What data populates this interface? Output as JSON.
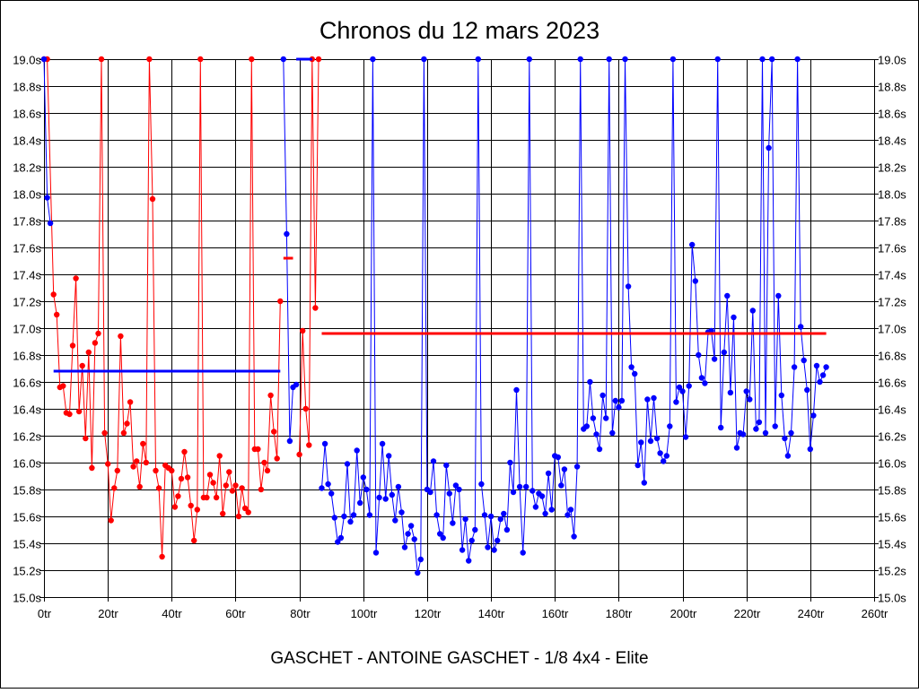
{
  "chart_data": {
    "type": "line",
    "title": "Chronos du 12 mars 2023",
    "subtitle": "GASCHET - ANTOINE GASCHET - 1/8 4x4 - Elite",
    "xlim": [
      0,
      260
    ],
    "ylim": [
      15.0,
      19.0
    ],
    "x_ticks": [
      {
        "v": 0,
        "label": "0tr"
      },
      {
        "v": 20,
        "label": "20tr"
      },
      {
        "v": 40,
        "label": "40tr"
      },
      {
        "v": 60,
        "label": "60tr"
      },
      {
        "v": 80,
        "label": "80tr"
      },
      {
        "v": 100,
        "label": "100tr"
      },
      {
        "v": 120,
        "label": "120tr"
      },
      {
        "v": 140,
        "label": "140tr"
      },
      {
        "v": 160,
        "label": "160tr"
      },
      {
        "v": 180,
        "label": "180tr"
      },
      {
        "v": 200,
        "label": "200tr"
      },
      {
        "v": 220,
        "label": "220tr"
      },
      {
        "v": 240,
        "label": "240tr"
      },
      {
        "v": 260,
        "label": "260tr"
      }
    ],
    "y_ticks": [
      {
        "v": 19.0,
        "label": "19.0s"
      },
      {
        "v": 18.8,
        "label": "18.8s"
      },
      {
        "v": 18.6,
        "label": "18.6s"
      },
      {
        "v": 18.4,
        "label": "18.4s"
      },
      {
        "v": 18.2,
        "label": "18.2s"
      },
      {
        "v": 18.0,
        "label": "18.0s"
      },
      {
        "v": 17.8,
        "label": "17.8s"
      },
      {
        "v": 17.6,
        "label": "17.6s"
      },
      {
        "v": 17.4,
        "label": "17.4s"
      },
      {
        "v": 17.2,
        "label": "17.2s"
      },
      {
        "v": 17.0,
        "label": "17.0s"
      },
      {
        "v": 16.8,
        "label": "16.8s"
      },
      {
        "v": 16.6,
        "label": "16.6s"
      },
      {
        "v": 16.4,
        "label": "16.4s"
      },
      {
        "v": 16.2,
        "label": "16.2s"
      },
      {
        "v": 16.0,
        "label": "16.0s"
      },
      {
        "v": 15.8,
        "label": "15.8s"
      },
      {
        "v": 15.6,
        "label": "15.6s"
      },
      {
        "v": 15.4,
        "label": "15.4s"
      },
      {
        "v": 15.2,
        "label": "15.2s"
      },
      {
        "v": 15.0,
        "label": "15.0s"
      }
    ],
    "grid": true,
    "series": [
      {
        "color": "#ff0000",
        "points": [
          [
            0,
            19.0
          ],
          [
            1,
            19.0
          ],
          [
            3,
            17.25
          ],
          [
            4,
            17.1
          ],
          [
            5,
            16.56
          ],
          [
            6,
            16.57
          ],
          [
            7,
            16.37
          ],
          [
            8,
            16.36
          ],
          [
            9,
            16.87
          ],
          [
            10,
            17.37
          ],
          [
            11,
            16.38
          ],
          [
            12,
            16.72
          ],
          [
            13,
            16.18
          ],
          [
            14,
            16.82
          ],
          [
            15,
            15.96
          ],
          [
            16,
            16.89
          ],
          [
            17,
            16.96
          ],
          [
            18,
            19.0
          ],
          [
            19,
            16.22
          ],
          [
            20,
            15.99
          ],
          [
            21,
            15.57
          ],
          [
            22,
            15.81
          ],
          [
            23,
            15.94
          ],
          [
            24,
            16.94
          ],
          [
            25,
            16.22
          ],
          [
            26,
            16.29
          ],
          [
            27,
            16.45
          ],
          [
            28,
            15.97
          ],
          [
            29,
            16.01
          ],
          [
            30,
            15.82
          ],
          [
            31,
            16.14
          ],
          [
            32,
            16.0
          ],
          [
            33,
            19.0
          ],
          [
            34,
            17.96
          ],
          [
            35,
            15.94
          ],
          [
            36,
            15.81
          ],
          [
            37,
            15.3
          ],
          [
            38,
            15.98
          ],
          [
            39,
            15.96
          ],
          [
            40,
            15.94
          ],
          [
            41,
            15.67
          ],
          [
            42,
            15.75
          ],
          [
            43,
            15.88
          ],
          [
            44,
            16.08
          ],
          [
            45,
            15.89
          ],
          [
            46,
            15.68
          ],
          [
            47,
            15.42
          ],
          [
            48,
            15.65
          ],
          [
            49,
            19.0
          ],
          [
            50,
            15.74
          ],
          [
            51,
            15.74
          ],
          [
            52,
            15.91
          ],
          [
            53,
            15.85
          ],
          [
            54,
            15.74
          ],
          [
            55,
            16.05
          ],
          [
            56,
            15.62
          ],
          [
            57,
            15.83
          ],
          [
            58,
            15.93
          ],
          [
            59,
            15.79
          ],
          [
            60,
            15.83
          ],
          [
            61,
            15.6
          ],
          [
            62,
            15.81
          ],
          [
            63,
            15.66
          ],
          [
            64,
            15.63
          ],
          [
            65,
            19.0
          ],
          [
            66,
            16.1
          ],
          [
            67,
            16.1
          ],
          [
            68,
            15.8
          ],
          [
            69,
            16.0
          ],
          [
            70,
            15.94
          ],
          [
            71,
            16.5
          ],
          [
            72,
            16.23
          ],
          [
            73,
            16.03
          ],
          [
            74,
            17.2
          ]
        ]
      },
      {
        "color": "#ff0000",
        "points": [
          [
            80,
            16.06
          ],
          [
            81,
            16.98
          ],
          [
            82,
            16.4
          ],
          [
            83,
            16.13
          ],
          [
            84,
            19.0
          ],
          [
            85,
            17.15
          ],
          [
            86,
            19.0
          ]
        ]
      },
      {
        "color": "#0000ff",
        "points": [
          [
            0,
            19.0
          ],
          [
            1,
            17.97
          ],
          [
            2,
            17.78
          ]
        ]
      },
      {
        "color": "#0000ff",
        "points": [
          [
            75,
            19.0
          ],
          [
            76,
            17.7
          ],
          [
            77,
            16.16
          ],
          [
            78,
            16.56
          ],
          [
            79,
            16.58
          ]
        ]
      },
      {
        "color": "#0000ff",
        "points": [
          [
            87,
            15.81
          ],
          [
            88,
            16.14
          ],
          [
            89,
            15.84
          ],
          [
            90,
            15.77
          ],
          [
            91,
            15.59
          ],
          [
            92,
            15.41
          ],
          [
            93,
            15.44
          ],
          [
            94,
            15.6
          ],
          [
            95,
            15.99
          ],
          [
            96,
            15.56
          ],
          [
            97,
            15.61
          ],
          [
            98,
            16.09
          ],
          [
            99,
            15.7
          ],
          [
            100,
            15.89
          ],
          [
            101,
            15.8
          ],
          [
            102,
            15.61
          ],
          [
            103,
            19.0
          ],
          [
            104,
            15.33
          ],
          [
            105,
            15.74
          ],
          [
            106,
            16.14
          ],
          [
            107,
            15.73
          ],
          [
            108,
            16.05
          ],
          [
            109,
            15.76
          ],
          [
            110,
            15.57
          ],
          [
            111,
            15.82
          ],
          [
            112,
            15.63
          ],
          [
            113,
            15.37
          ],
          [
            114,
            15.47
          ],
          [
            115,
            15.53
          ],
          [
            116,
            15.43
          ],
          [
            117,
            15.18
          ],
          [
            118,
            15.28
          ],
          [
            119,
            19.0
          ],
          [
            120,
            15.8
          ],
          [
            121,
            15.78
          ],
          [
            122,
            16.01
          ],
          [
            123,
            15.61
          ],
          [
            124,
            15.47
          ],
          [
            125,
            15.44
          ],
          [
            126,
            15.98
          ],
          [
            127,
            15.77
          ],
          [
            128,
            15.55
          ],
          [
            129,
            15.83
          ],
          [
            130,
            15.8
          ],
          [
            131,
            15.35
          ],
          [
            132,
            15.58
          ],
          [
            133,
            15.27
          ],
          [
            134,
            15.42
          ],
          [
            135,
            15.5
          ],
          [
            136,
            19.0
          ],
          [
            137,
            15.84
          ],
          [
            138,
            15.61
          ],
          [
            139,
            15.37
          ],
          [
            140,
            15.6
          ],
          [
            141,
            15.35
          ],
          [
            142,
            15.42
          ],
          [
            143,
            15.58
          ],
          [
            144,
            15.62
          ],
          [
            145,
            15.5
          ],
          [
            146,
            16.0
          ],
          [
            147,
            15.78
          ],
          [
            148,
            16.54
          ],
          [
            149,
            15.82
          ],
          [
            150,
            15.33
          ],
          [
            151,
            15.82
          ],
          [
            152,
            19.0
          ],
          [
            153,
            15.79
          ],
          [
            154,
            15.67
          ],
          [
            155,
            15.77
          ],
          [
            156,
            15.75
          ],
          [
            157,
            15.62
          ],
          [
            158,
            15.92
          ],
          [
            159,
            15.65
          ],
          [
            160,
            16.05
          ],
          [
            161,
            16.04
          ],
          [
            162,
            15.83
          ],
          [
            163,
            15.95
          ],
          [
            164,
            15.61
          ],
          [
            165,
            15.65
          ],
          [
            166,
            15.45
          ],
          [
            167,
            15.97
          ],
          [
            168,
            19.0
          ],
          [
            169,
            16.25
          ],
          [
            170,
            16.27
          ],
          [
            171,
            16.6
          ],
          [
            172,
            16.33
          ],
          [
            173,
            16.21
          ],
          [
            174,
            16.1
          ],
          [
            175,
            16.5
          ],
          [
            176,
            16.33
          ],
          [
            177,
            19.0
          ],
          [
            178,
            16.22
          ],
          [
            179,
            16.46
          ],
          [
            180,
            16.41
          ],
          [
            181,
            16.46
          ],
          [
            182,
            19.0
          ],
          [
            183,
            17.31
          ],
          [
            184,
            16.71
          ],
          [
            185,
            16.66
          ],
          [
            186,
            15.98
          ],
          [
            187,
            16.15
          ],
          [
            188,
            15.85
          ],
          [
            189,
            16.47
          ],
          [
            190,
            16.16
          ],
          [
            191,
            16.48
          ],
          [
            192,
            16.18
          ],
          [
            193,
            16.07
          ],
          [
            194,
            16.01
          ],
          [
            195,
            16.05
          ],
          [
            196,
            16.27
          ],
          [
            197,
            19.0
          ],
          [
            198,
            16.45
          ],
          [
            199,
            16.56
          ],
          [
            200,
            16.53
          ],
          [
            201,
            16.19
          ],
          [
            202,
            16.57
          ],
          [
            203,
            17.62
          ],
          [
            204,
            17.35
          ],
          [
            205,
            16.8
          ],
          [
            206,
            16.63
          ],
          [
            207,
            16.59
          ],
          [
            208,
            16.97
          ],
          [
            209,
            16.98
          ],
          [
            210,
            16.77
          ],
          [
            211,
            19.0
          ],
          [
            212,
            16.26
          ],
          [
            213,
            16.82
          ],
          [
            214,
            17.24
          ],
          [
            215,
            16.52
          ],
          [
            216,
            17.08
          ],
          [
            217,
            16.11
          ],
          [
            218,
            16.22
          ],
          [
            219,
            16.21
          ],
          [
            220,
            16.53
          ],
          [
            221,
            16.47
          ],
          [
            222,
            17.13
          ],
          [
            223,
            16.25
          ],
          [
            224,
            16.3
          ],
          [
            225,
            19.0
          ],
          [
            226,
            16.22
          ],
          [
            227,
            18.34
          ],
          [
            228,
            19.0
          ],
          [
            229,
            16.27
          ],
          [
            230,
            17.24
          ],
          [
            231,
            16.5
          ],
          [
            232,
            16.18
          ],
          [
            233,
            16.05
          ],
          [
            234,
            16.22
          ],
          [
            235,
            16.71
          ],
          [
            236,
            19.0
          ],
          [
            237,
            17.01
          ],
          [
            238,
            16.76
          ],
          [
            239,
            16.54
          ],
          [
            240,
            16.1
          ],
          [
            241,
            16.35
          ],
          [
            242,
            16.72
          ],
          [
            243,
            16.6
          ],
          [
            244,
            16.65
          ],
          [
            245,
            16.71
          ]
        ]
      }
    ],
    "reference_lines": [
      {
        "color": "#0000ff",
        "x1": 3,
        "x2": 74,
        "y": 16.68
      },
      {
        "color": "#ff0000",
        "x1": 87,
        "x2": 245,
        "y": 16.96
      },
      {
        "color": "#ff0000",
        "x1": 75,
        "x2": 78,
        "y": 17.52
      },
      {
        "color": "#0000ff",
        "x1": 79,
        "x2": 84,
        "y": 19.0
      }
    ]
  }
}
